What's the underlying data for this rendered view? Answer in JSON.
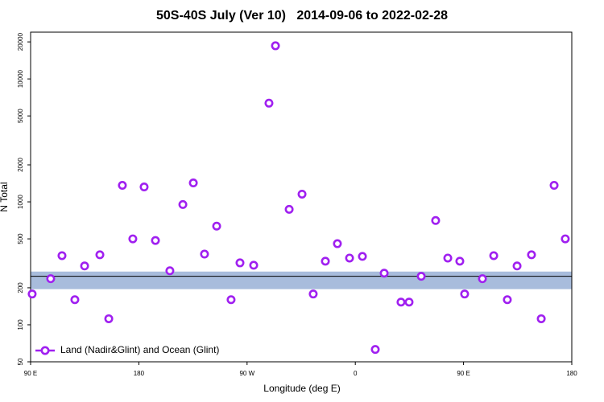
{
  "chart_data": {
    "type": "scatter",
    "title": "50S-40S July (Ver 10)   2014-09-06 to 2022-02-28",
    "x_label": "Longitude (deg E)",
    "y_label": "N Total",
    "log_y": true,
    "xlim": [
      90,
      540
    ],
    "ylim": [
      50,
      24000
    ],
    "xticks": [
      {
        "value": 90,
        "label": "90 E"
      },
      {
        "value": 180,
        "label": "180"
      },
      {
        "value": 270,
        "label": "90 W"
      },
      {
        "value": 360,
        "label": "0"
      },
      {
        "value": 450,
        "label": "90 E"
      },
      {
        "value": 540,
        "label": "180"
      }
    ],
    "yticks": [
      50,
      100,
      200,
      500,
      1000,
      2000,
      5000,
      10000,
      20000
    ],
    "band": [
      195,
      271
    ],
    "band_color": "#a8bcdc",
    "reference_line": 248,
    "legend_position": "bottom-left",
    "series": [
      {
        "name": "Land (Nadir&Glint) and Ocean (Glint)",
        "color": "#a020f0",
        "x": [
          91.3,
          106.7,
          116.1,
          126.8,
          134.9,
          147.6,
          155,
          166.3,
          175,
          184.4,
          193.8,
          205.8,
          216.6,
          225.3,
          234.6,
          244.7,
          256.7,
          264.1,
          275.5,
          288.2,
          293.6,
          305,
          315.7,
          325,
          335.1,
          345.1,
          355.2,
          365.9,
          376.6,
          384,
          398,
          404.7,
          414.8,
          426.8,
          436.9,
          446.9,
          450.9,
          465.7,
          475.1,
          486.4,
          494.5,
          506.5,
          514.6,
          525.3,
          534.6
        ],
        "values": [
          178,
          237,
          365,
          160,
          301,
          371,
          112,
          1362,
          500,
          1322,
          485,
          275,
          951,
          1425,
          376,
          635,
          160,
          319,
          305,
          6350,
          18600,
          869,
          1155,
          178,
          329,
          457,
          349,
          360,
          63,
          263,
          153,
          153,
          248,
          705,
          349,
          329,
          178,
          237,
          365,
          160,
          301,
          371,
          112,
          1362,
          500
        ]
      }
    ]
  }
}
